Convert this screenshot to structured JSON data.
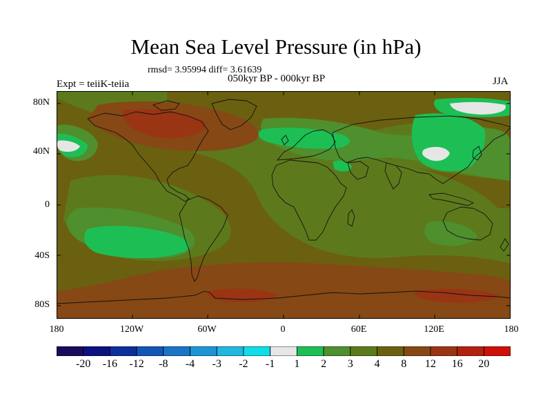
{
  "title": "Mean Sea Level Pressure (in hPa)",
  "stats_text": "rmsd= 3.95994  diff= 3.61639",
  "period_text": "050kyr BP - 000kyr BP",
  "experiment_text": "Expt = teiiK-teiia",
  "season_text": "JJA",
  "map": {
    "projection": "cylindrical-equidistant",
    "lon_range": [
      -180,
      180
    ],
    "lat_range": [
      -90,
      90
    ],
    "lat_ticks": [
      {
        "value": 80,
        "label": "80N"
      },
      {
        "value": 40,
        "label": "40N"
      },
      {
        "value": 0,
        "label": "0"
      },
      {
        "value": -40,
        "label": "40S"
      },
      {
        "value": -80,
        "label": "80S"
      }
    ],
    "lon_ticks": [
      {
        "value": -180,
        "label": "180"
      },
      {
        "value": -120,
        "label": "120W"
      },
      {
        "value": -60,
        "label": "60W"
      },
      {
        "value": 0,
        "label": "0"
      },
      {
        "value": 60,
        "label": "60E"
      },
      {
        "value": 120,
        "label": "120E"
      },
      {
        "value": 180,
        "label": "180"
      }
    ]
  },
  "colorbar": {
    "colors": [
      "#1a0a5e",
      "#0c1180",
      "#0d2f9b",
      "#1456b3",
      "#1b74c5",
      "#1d95d4",
      "#22b7e0",
      "#10dde8",
      "#e6e6e6",
      "#1dbf55",
      "#4f8f2d",
      "#5c7a1c",
      "#6b6010",
      "#864815",
      "#9a3514",
      "#b12210",
      "#cd1108"
    ],
    "labels": [
      "-20",
      "-16",
      "-12",
      "-8",
      "-4",
      "-3",
      "-2",
      "-1",
      "1",
      "2",
      "3",
      "4",
      "8",
      "12",
      "16",
      "20"
    ]
  },
  "field_colors": {
    "ocean_base": "#6b6010",
    "band_3_4": "#5c7a1c",
    "band_2_3": "#4f8f2d",
    "band_1_2": "#1dbf55",
    "band_lt1": "#e6e6e6",
    "band_8_12": "#864815",
    "band_12_16": "#9a3514",
    "coastline": "#111111"
  }
}
